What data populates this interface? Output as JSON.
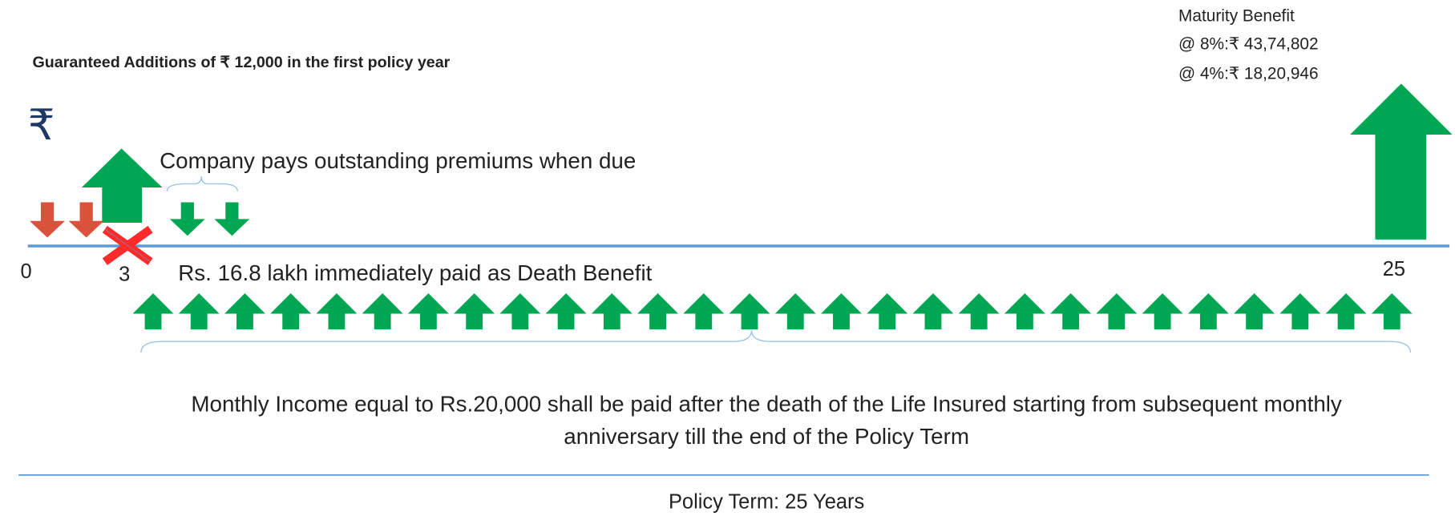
{
  "guaranteed_additions": "Guaranteed Additions of ₹ 12,000 in the first policy year",
  "maturity": {
    "title": "Maturity Benefit",
    "lines": [
      "@ 8%:₹ 43,74,802",
      "@ 4%:₹ 18,20,946"
    ]
  },
  "currency_symbol": "₹",
  "company_pays": "Company pays outstanding premiums when due",
  "timeline": {
    "start": "0",
    "death_year": "3",
    "end": "25"
  },
  "death_benefit": "Rs. 16.8 lakh immediately paid as Death Benefit",
  "monthly_income": [
    "Monthly Income equal to Rs.20,000 shall be paid after the death of the Life Insured starting from subsequent monthly",
    "anniversary till the end of the Policy Term"
  ],
  "policy_term": "Policy Term: 25 Years"
}
